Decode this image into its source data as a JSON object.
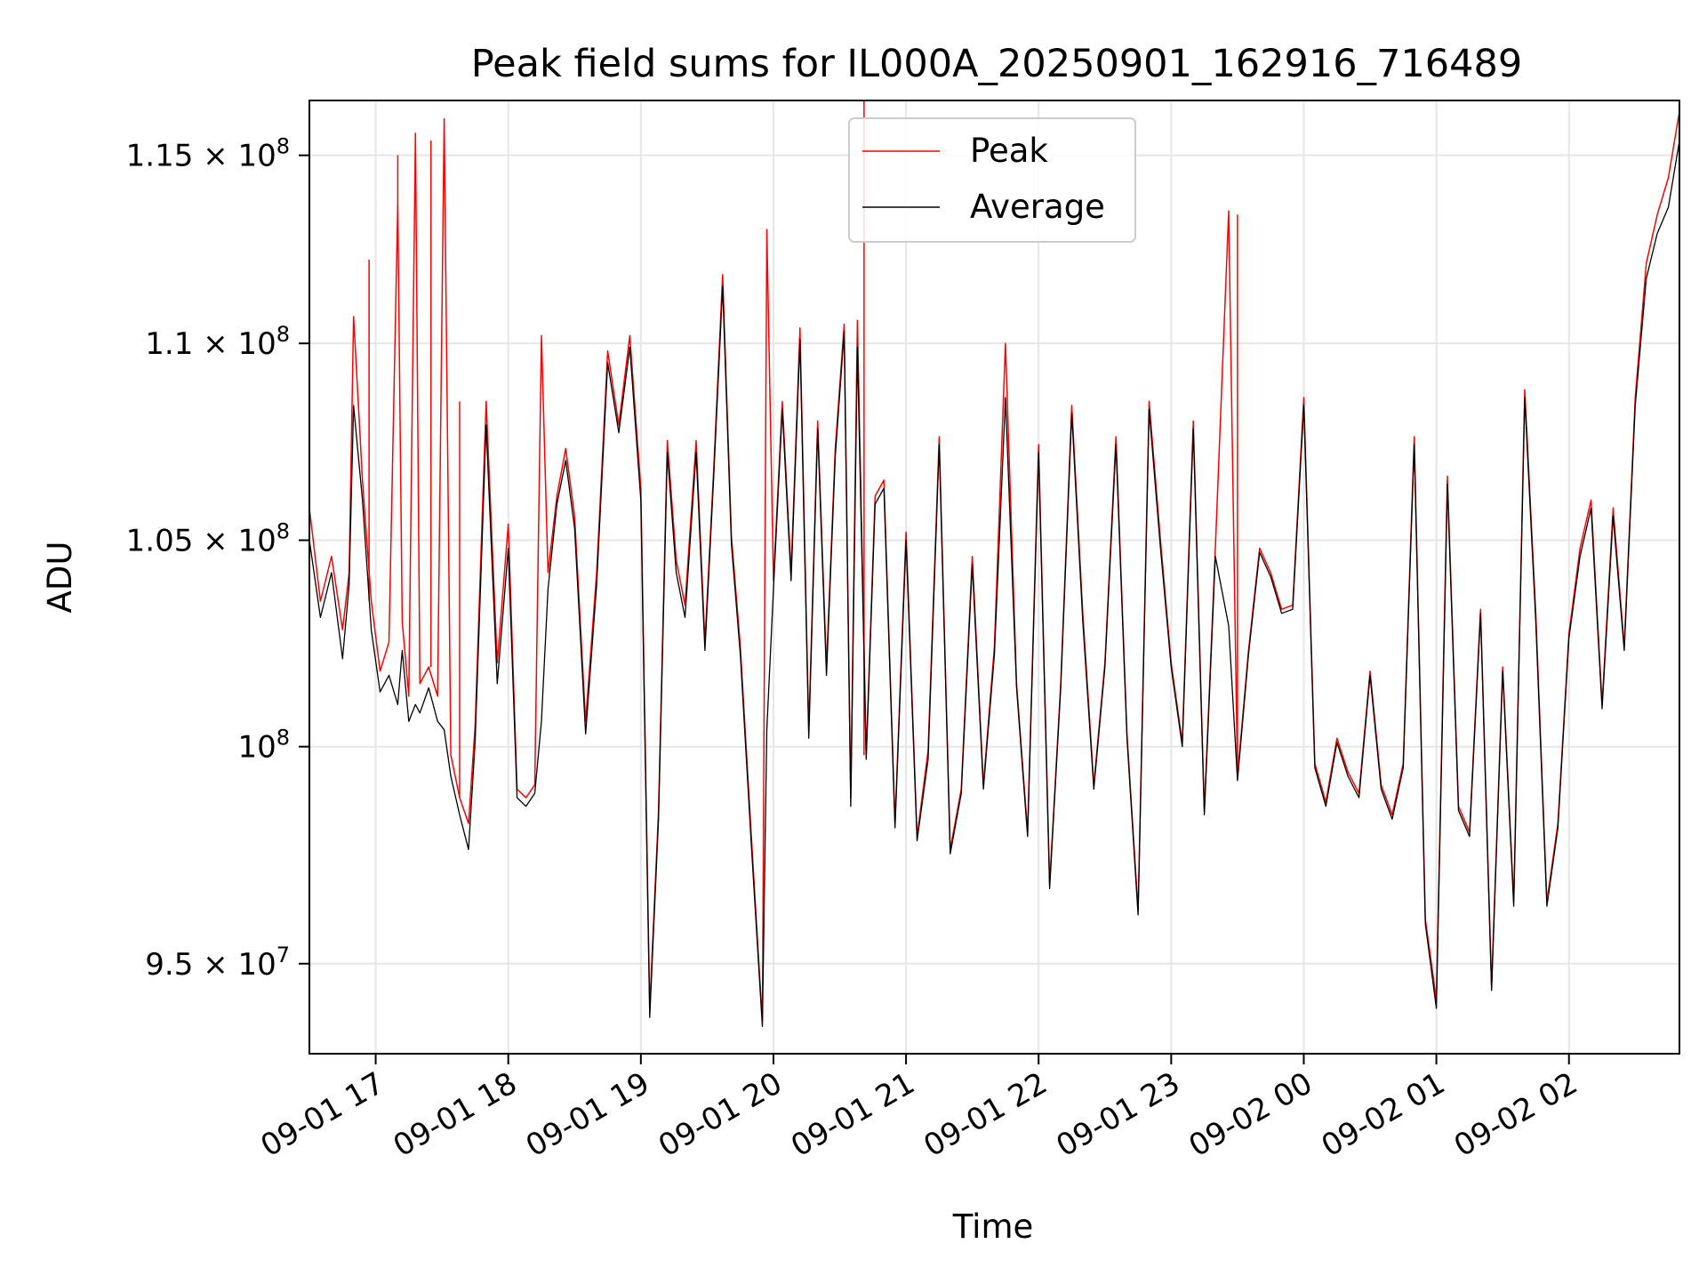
{
  "chart_data": {
    "type": "line",
    "title": "Peak field sums for IL000A_20250901_162916_716489",
    "xlabel": "Time",
    "ylabel": "ADU",
    "x_range": [
      "2025-09-01 16:30",
      "2025-09-02 02:50"
    ],
    "ylim": [
      93000000,
      116500000
    ],
    "grid": true,
    "legend_position": "upper-center",
    "x_ticks": [
      {
        "value": "2025-09-01 17:00",
        "label": "09-01 17"
      },
      {
        "value": "2025-09-01 18:00",
        "label": "09-01 18"
      },
      {
        "value": "2025-09-01 19:00",
        "label": "09-01 19"
      },
      {
        "value": "2025-09-01 20:00",
        "label": "09-01 20"
      },
      {
        "value": "2025-09-01 21:00",
        "label": "09-01 21"
      },
      {
        "value": "2025-09-01 22:00",
        "label": "09-01 22"
      },
      {
        "value": "2025-09-01 23:00",
        "label": "09-01 23"
      },
      {
        "value": "2025-09-02 00:00",
        "label": "09-02 00"
      },
      {
        "value": "2025-09-02 01:00",
        "label": "09-02 01"
      },
      {
        "value": "2025-09-02 02:00",
        "label": "09-02 02"
      }
    ],
    "y_ticks": [
      {
        "value": 95000000,
        "mantissa": "9.5",
        "exponent": "7"
      },
      {
        "value": 100000000,
        "mantissa": "",
        "exponent": "8"
      },
      {
        "value": 105000000,
        "mantissa": "1.05",
        "exponent": "8"
      },
      {
        "value": 110000000,
        "mantissa": "1.1",
        "exponent": "8"
      },
      {
        "value": 115000000,
        "mantissa": "1.15",
        "exponent": "8"
      }
    ],
    "series": [
      {
        "name": "Peak",
        "color": "#ff0000",
        "x": [
          "2025-09-01 16:30",
          "2025-09-01 16:35",
          "2025-09-01 16:40",
          "2025-09-01 16:45",
          "2025-09-01 16:48",
          "2025-09-01 16:50",
          "2025-09-01 16:54",
          "2025-09-01 16:58",
          "2025-09-01 17:02",
          "2025-09-01 17:06",
          "2025-09-01 17:10",
          "2025-09-01 17:12",
          "2025-09-01 17:15",
          "2025-09-01 17:18",
          "2025-09-01 17:20",
          "2025-09-01 17:24",
          "2025-09-01 17:28",
          "2025-09-01 17:31",
          "2025-09-01 17:34",
          "2025-09-01 17:38",
          "2025-09-01 17:42",
          "2025-09-01 17:45",
          "2025-09-01 17:50",
          "2025-09-01 17:55",
          "2025-09-01 18:00",
          "2025-09-01 18:04",
          "2025-09-01 18:08",
          "2025-09-01 18:12",
          "2025-09-01 18:15",
          "2025-09-01 18:18",
          "2025-09-01 18:22",
          "2025-09-01 18:26",
          "2025-09-01 18:30",
          "2025-09-01 18:35",
          "2025-09-01 18:40",
          "2025-09-01 18:45",
          "2025-09-01 18:50",
          "2025-09-01 18:55",
          "2025-09-01 19:00",
          "2025-09-01 19:04",
          "2025-09-01 19:08",
          "2025-09-01 19:12",
          "2025-09-01 19:16",
          "2025-09-01 19:20",
          "2025-09-01 19:25",
          "2025-09-01 19:29",
          "2025-09-01 19:33",
          "2025-09-01 19:37",
          "2025-09-01 19:41",
          "2025-09-01 19:45",
          "2025-09-01 19:50",
          "2025-09-01 19:55",
          "2025-09-01 19:57",
          "2025-09-01 20:00",
          "2025-09-01 20:04",
          "2025-09-01 20:08",
          "2025-09-01 20:12",
          "2025-09-01 20:16",
          "2025-09-01 20:20",
          "2025-09-01 20:24",
          "2025-09-01 20:28",
          "2025-09-01 20:32",
          "2025-09-01 20:35",
          "2025-09-01 20:38",
          "2025-09-01 20:42",
          "2025-09-01 20:46",
          "2025-09-01 20:50",
          "2025-09-01 20:55",
          "2025-09-01 21:00",
          "2025-09-01 21:05",
          "2025-09-01 21:10",
          "2025-09-01 21:15",
          "2025-09-01 21:20",
          "2025-09-01 21:25",
          "2025-09-01 21:30",
          "2025-09-01 21:35",
          "2025-09-01 21:40",
          "2025-09-01 21:45",
          "2025-09-01 21:50",
          "2025-09-01 21:55",
          "2025-09-01 22:00",
          "2025-09-01 22:05",
          "2025-09-01 22:10",
          "2025-09-01 22:15",
          "2025-09-01 22:20",
          "2025-09-01 22:25",
          "2025-09-01 22:30",
          "2025-09-01 22:35",
          "2025-09-01 22:40",
          "2025-09-01 22:45",
          "2025-09-01 22:50",
          "2025-09-01 22:55",
          "2025-09-01 23:00",
          "2025-09-01 23:05",
          "2025-09-01 23:10",
          "2025-09-01 23:15",
          "2025-09-01 23:20",
          "2025-09-01 23:26",
          "2025-09-01 23:30",
          "2025-09-01 23:35",
          "2025-09-01 23:40",
          "2025-09-01 23:45",
          "2025-09-01 23:50",
          "2025-09-01 23:55",
          "2025-09-02 00:00",
          "2025-09-02 00:05",
          "2025-09-02 00:10",
          "2025-09-02 00:15",
          "2025-09-02 00:20",
          "2025-09-02 00:25",
          "2025-09-02 00:30",
          "2025-09-02 00:35",
          "2025-09-02 00:40",
          "2025-09-02 00:45",
          "2025-09-02 00:50",
          "2025-09-02 00:55",
          "2025-09-02 01:00",
          "2025-09-02 01:05",
          "2025-09-02 01:10",
          "2025-09-02 01:15",
          "2025-09-02 01:20",
          "2025-09-02 01:25",
          "2025-09-02 01:30",
          "2025-09-02 01:35",
          "2025-09-02 01:40",
          "2025-09-02 01:45",
          "2025-09-02 01:50",
          "2025-09-02 01:55",
          "2025-09-02 02:00",
          "2025-09-02 02:05",
          "2025-09-02 02:10",
          "2025-09-02 02:15",
          "2025-09-02 02:20",
          "2025-09-02 02:25",
          "2025-09-02 02:30",
          "2025-09-02 02:35",
          "2025-09-02 02:40",
          "2025-09-02 02:45",
          "2025-09-02 02:50"
        ],
        "y": [
          105800000,
          103500000,
          104600000,
          102800000,
          104200000,
          110700000,
          106500000,
          103500000,
          101800000,
          102500000,
          113700000,
          103000000,
          101200000,
          115600000,
          101500000,
          101900000,
          101200000,
          116000000,
          99800000,
          98800000,
          98200000,
          100500000,
          108500000,
          102000000,
          105400000,
          99000000,
          98800000,
          99100000,
          110200000,
          104200000,
          106100000,
          107300000,
          105600000,
          100600000,
          104200000,
          109800000,
          107900000,
          110200000,
          106300000,
          94000000,
          98500000,
          107500000,
          104500000,
          103400000,
          107500000,
          102500000,
          106800000,
          111800000,
          105100000,
          102400000,
          97900000,
          93700000,
          113000000,
          104000000,
          108500000,
          104200000,
          110400000,
          100400000,
          108000000,
          101900000,
          107300000,
          110500000,
          98800000,
          110600000,
          99800000,
          106100000,
          106500000,
          98200000,
          105200000,
          97900000,
          99900000,
          107600000,
          97600000,
          99000000,
          104600000,
          99100000,
          102400000,
          110000000,
          101500000,
          98000000,
          107400000,
          96800000,
          101500000,
          108400000,
          103200000,
          99100000,
          102000000,
          107600000,
          100300000,
          96200000,
          108500000,
          105100000,
          102000000,
          100100000,
          108000000,
          98500000,
          104800000,
          113500000,
          99300000,
          102300000,
          104800000,
          104200000,
          103300000,
          103400000,
          108600000,
          99600000,
          98700000,
          100200000,
          99400000,
          98900000,
          101800000,
          99100000,
          98400000,
          99600000,
          107600000,
          96000000,
          94200000,
          106600000,
          98600000,
          98000000,
          103300000,
          94500000,
          101900000,
          96400000,
          108800000,
          103200000,
          96400000,
          98200000,
          102700000,
          104800000,
          106000000,
          101000000,
          105800000,
          102400000,
          108600000,
          112100000,
          113400000,
          114400000,
          116200000
        ],
        "spikes": [
          {
            "x": "2025-09-01 16:50",
            "y": 110700000
          },
          {
            "x": "2025-09-01 16:57",
            "y": 112200000
          },
          {
            "x": "2025-09-01 17:10",
            "y": 115000000
          },
          {
            "x": "2025-09-01 17:25",
            "y": 115400000
          },
          {
            "x": "2025-09-01 17:38",
            "y": 108500000
          },
          {
            "x": "2025-09-01 19:57",
            "y": 113000000
          },
          {
            "x": "2025-09-01 20:41",
            "y": 116500000
          },
          {
            "x": "2025-09-01 23:30",
            "y": 113400000
          }
        ]
      },
      {
        "name": "Average",
        "color": "#000000",
        "x": [
          "2025-09-01 16:30",
          "2025-09-01 16:35",
          "2025-09-01 16:40",
          "2025-09-01 16:45",
          "2025-09-01 16:48",
          "2025-09-01 16:50",
          "2025-09-01 16:54",
          "2025-09-01 16:58",
          "2025-09-01 17:02",
          "2025-09-01 17:06",
          "2025-09-01 17:10",
          "2025-09-01 17:12",
          "2025-09-01 17:15",
          "2025-09-01 17:18",
          "2025-09-01 17:20",
          "2025-09-01 17:24",
          "2025-09-01 17:28",
          "2025-09-01 17:31",
          "2025-09-01 17:34",
          "2025-09-01 17:38",
          "2025-09-01 17:42",
          "2025-09-01 17:45",
          "2025-09-01 17:50",
          "2025-09-01 17:55",
          "2025-09-01 18:00",
          "2025-09-01 18:04",
          "2025-09-01 18:08",
          "2025-09-01 18:12",
          "2025-09-01 18:15",
          "2025-09-01 18:18",
          "2025-09-01 18:22",
          "2025-09-01 18:26",
          "2025-09-01 18:30",
          "2025-09-01 18:35",
          "2025-09-01 18:40",
          "2025-09-01 18:45",
          "2025-09-01 18:50",
          "2025-09-01 18:55",
          "2025-09-01 19:00",
          "2025-09-01 19:04",
          "2025-09-01 19:08",
          "2025-09-01 19:12",
          "2025-09-01 19:16",
          "2025-09-01 19:20",
          "2025-09-01 19:25",
          "2025-09-01 19:29",
          "2025-09-01 19:33",
          "2025-09-01 19:37",
          "2025-09-01 19:41",
          "2025-09-01 19:45",
          "2025-09-01 19:50",
          "2025-09-01 19:55",
          "2025-09-01 19:57",
          "2025-09-01 20:00",
          "2025-09-01 20:04",
          "2025-09-01 20:08",
          "2025-09-01 20:12",
          "2025-09-01 20:16",
          "2025-09-01 20:20",
          "2025-09-01 20:24",
          "2025-09-01 20:28",
          "2025-09-01 20:32",
          "2025-09-01 20:35",
          "2025-09-01 20:38",
          "2025-09-01 20:42",
          "2025-09-01 20:46",
          "2025-09-01 20:50",
          "2025-09-01 20:55",
          "2025-09-01 21:00",
          "2025-09-01 21:05",
          "2025-09-01 21:10",
          "2025-09-01 21:15",
          "2025-09-01 21:20",
          "2025-09-01 21:25",
          "2025-09-01 21:30",
          "2025-09-01 21:35",
          "2025-09-01 21:40",
          "2025-09-01 21:45",
          "2025-09-01 21:50",
          "2025-09-01 21:55",
          "2025-09-01 22:00",
          "2025-09-01 22:05",
          "2025-09-01 22:10",
          "2025-09-01 22:15",
          "2025-09-01 22:20",
          "2025-09-01 22:25",
          "2025-09-01 22:30",
          "2025-09-01 22:35",
          "2025-09-01 22:40",
          "2025-09-01 22:45",
          "2025-09-01 22:50",
          "2025-09-01 22:55",
          "2025-09-01 23:00",
          "2025-09-01 23:05",
          "2025-09-01 23:10",
          "2025-09-01 23:15",
          "2025-09-01 23:20",
          "2025-09-01 23:26",
          "2025-09-01 23:30",
          "2025-09-01 23:35",
          "2025-09-01 23:40",
          "2025-09-01 23:45",
          "2025-09-01 23:50",
          "2025-09-01 23:55",
          "2025-09-02 00:00",
          "2025-09-02 00:05",
          "2025-09-02 00:10",
          "2025-09-02 00:15",
          "2025-09-02 00:20",
          "2025-09-02 00:25",
          "2025-09-02 00:30",
          "2025-09-02 00:35",
          "2025-09-02 00:40",
          "2025-09-02 00:45",
          "2025-09-02 00:50",
          "2025-09-02 00:55",
          "2025-09-02 01:00",
          "2025-09-02 01:05",
          "2025-09-02 01:10",
          "2025-09-02 01:15",
          "2025-09-02 01:20",
          "2025-09-02 01:25",
          "2025-09-02 01:30",
          "2025-09-02 01:35",
          "2025-09-02 01:40",
          "2025-09-02 01:45",
          "2025-09-02 01:50",
          "2025-09-02 01:55",
          "2025-09-02 02:00",
          "2025-09-02 02:05",
          "2025-09-02 02:10",
          "2025-09-02 02:15",
          "2025-09-02 02:20",
          "2025-09-02 02:25",
          "2025-09-02 02:30",
          "2025-09-02 02:35",
          "2025-09-02 02:40",
          "2025-09-02 02:45",
          "2025-09-02 02:50"
        ],
        "y": [
          105000000,
          103100000,
          104200000,
          102100000,
          103900000,
          108400000,
          106000000,
          102800000,
          101300000,
          101700000,
          101000000,
          102300000,
          100600000,
          101000000,
          100800000,
          101400000,
          100600000,
          100400000,
          99300000,
          98400000,
          97600000,
          100100000,
          107900000,
          101500000,
          104800000,
          98800000,
          98600000,
          98900000,
          100600000,
          103800000,
          105900000,
          107000000,
          105300000,
          100300000,
          103900000,
          109500000,
          107700000,
          109900000,
          106000000,
          93800000,
          98300000,
          107200000,
          104200000,
          103100000,
          107200000,
          102300000,
          106600000,
          111500000,
          104900000,
          102200000,
          97700000,
          93600000,
          100400000,
          103800000,
          108300000,
          104000000,
          110100000,
          100200000,
          107800000,
          101700000,
          107100000,
          110300000,
          98600000,
          109900000,
          99700000,
          105900000,
          106300000,
          98100000,
          105000000,
          97800000,
          99700000,
          107400000,
          97500000,
          98900000,
          104400000,
          99000000,
          102200000,
          108600000,
          101400000,
          97900000,
          107200000,
          96700000,
          101400000,
          108200000,
          103000000,
          99000000,
          101900000,
          107400000,
          100200000,
          96100000,
          108300000,
          104900000,
          101900000,
          100000000,
          107800000,
          98400000,
          104600000,
          102900000,
          99200000,
          102200000,
          104700000,
          104100000,
          103200000,
          103300000,
          108400000,
          99500000,
          98600000,
          100100000,
          99300000,
          98800000,
          101700000,
          99000000,
          98300000,
          99500000,
          107400000,
          95900000,
          94000000,
          106400000,
          98500000,
          97900000,
          103200000,
          94400000,
          101800000,
          96300000,
          108600000,
          103000000,
          96300000,
          98100000,
          102600000,
          104600000,
          105800000,
          100900000,
          105600000,
          102300000,
          108400000,
          111700000,
          112900000,
          113600000,
          115400000
        ]
      }
    ]
  }
}
